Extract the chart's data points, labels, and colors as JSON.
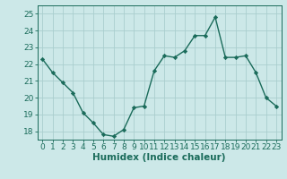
{
  "x": [
    0,
    1,
    2,
    3,
    4,
    5,
    6,
    7,
    8,
    9,
    10,
    11,
    12,
    13,
    14,
    15,
    16,
    17,
    18,
    19,
    20,
    21,
    22,
    23
  ],
  "y": [
    22.3,
    21.5,
    20.9,
    20.3,
    19.1,
    18.5,
    17.8,
    17.7,
    18.1,
    19.4,
    19.5,
    21.6,
    22.5,
    22.4,
    22.8,
    23.7,
    23.7,
    24.8,
    22.4,
    22.4,
    22.5,
    21.5,
    20.0,
    19.5
  ],
  "line_color": "#1a6b5a",
  "marker": "D",
  "marker_size": 2.2,
  "line_width": 1.0,
  "xlabel": "Humidex (Indice chaleur)",
  "ylim": [
    17.5,
    25.5
  ],
  "xlim": [
    -0.5,
    23.5
  ],
  "yticks": [
    18,
    19,
    20,
    21,
    22,
    23,
    24,
    25
  ],
  "xticks": [
    0,
    1,
    2,
    3,
    4,
    5,
    6,
    7,
    8,
    9,
    10,
    11,
    12,
    13,
    14,
    15,
    16,
    17,
    18,
    19,
    20,
    21,
    22,
    23
  ],
  "xtick_labels": [
    "0",
    "1",
    "2",
    "3",
    "4",
    "5",
    "6",
    "7",
    "8",
    "9",
    "10",
    "11",
    "12",
    "13",
    "14",
    "15",
    "16",
    "17",
    "18",
    "19",
    "20",
    "21",
    "22",
    "23"
  ],
  "bg_color": "#cce8e8",
  "grid_color": "#aacece",
  "tick_color": "#1a6b5a",
  "label_color": "#1a6b5a",
  "font_size": 6.5,
  "xlabel_fontsize": 7.5
}
